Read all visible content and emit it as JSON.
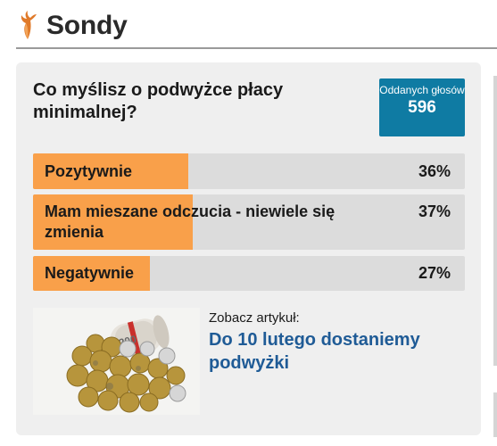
{
  "header": {
    "title": "Sondy",
    "logo_icon": "deer-logo-icon"
  },
  "poll": {
    "question": "Co myślisz o podwyżce płacy minimalnej?",
    "votes_label": "Oddanych głosów",
    "votes_count": "596",
    "options": [
      {
        "label": "Pozytywnie",
        "percent_text": "36%",
        "percent": 36
      },
      {
        "label": "Mam mieszane odczucia - niewiele się zmienia",
        "percent_text": "37%",
        "percent": 37
      },
      {
        "label": "Negatywnie",
        "percent_text": "27%",
        "percent": 27
      }
    ]
  },
  "article": {
    "pre_label": "Zobacz artykuł:",
    "title": "Do 10 lutego dostaniemy podwyżki",
    "image": "coins-and-banknote-photo"
  },
  "colors": {
    "accent": "#f9a04a",
    "votes_badge": "#0f7ba3",
    "link": "#1f5b96",
    "card_bg": "#efefef",
    "bar_track": "#dcdcdc"
  }
}
